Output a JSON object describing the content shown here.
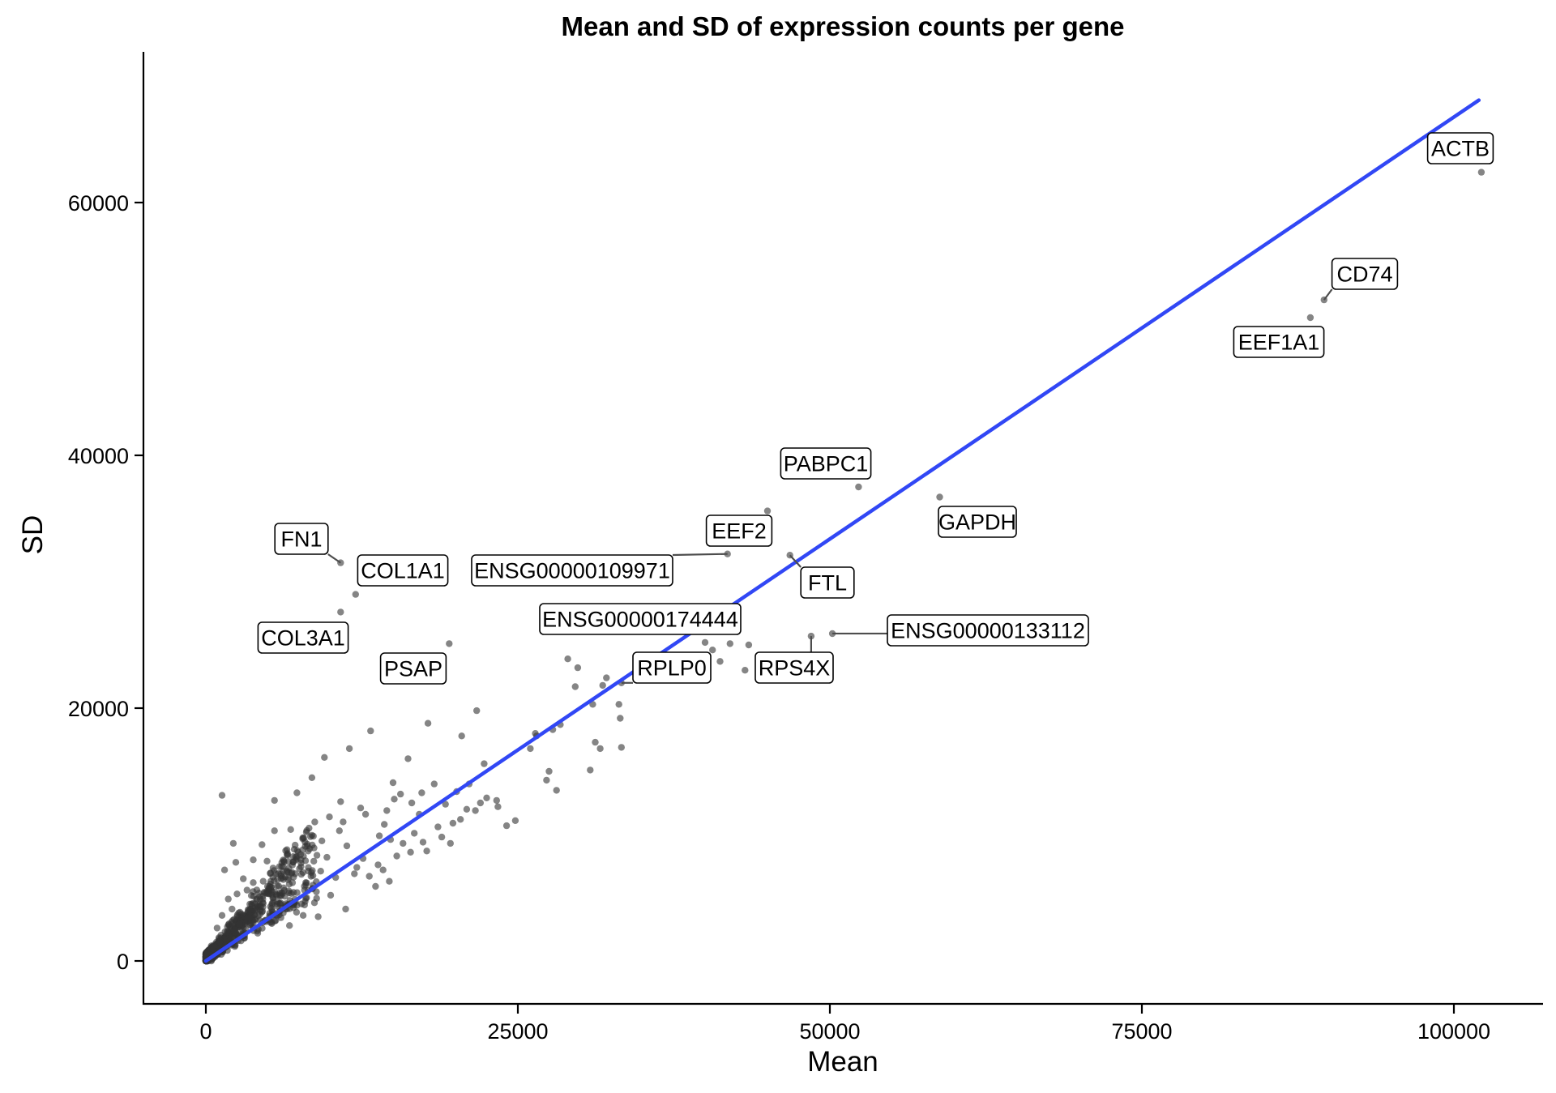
{
  "chart_data": {
    "type": "scatter",
    "title": "Mean and SD of expression counts per gene",
    "xlabel": "Mean",
    "ylabel": "SD",
    "xlim": [
      -5000,
      107500
    ],
    "ylim": [
      -3500,
      72000
    ],
    "x_ticks": [
      0,
      25000,
      50000,
      75000,
      100000
    ],
    "x_tick_labels": [
      "0",
      "25000",
      "50000",
      "75000",
      "100000"
    ],
    "y_ticks": [
      0,
      20000,
      40000,
      60000
    ],
    "y_tick_labels": [
      "0",
      "20000",
      "40000",
      "60000"
    ],
    "grid": false,
    "point_color": "#333333",
    "point_opacity": 0.6,
    "trend_line": {
      "type": "linear fit",
      "color": "#3147F5",
      "x": [
        0,
        102000
      ],
      "y": [
        0,
        68100
      ]
    },
    "labeled_points": [
      {
        "gene": "ACTB",
        "x": 102200,
        "y": 62400
      },
      {
        "gene": "CD74",
        "x": 89600,
        "y": 52300
      },
      {
        "gene": "EEF1A1",
        "x": 88500,
        "y": 50900
      },
      {
        "gene": "PABPC1",
        "x": 52300,
        "y": 37500
      },
      {
        "gene": "GAPDH",
        "x": 58800,
        "y": 36700
      },
      {
        "gene": "EEF2",
        "x": 45000,
        "y": 35600
      },
      {
        "gene": "FTL",
        "x": 46800,
        "y": 32100
      },
      {
        "gene": "ENSG00000109971",
        "x": 41800,
        "y": 32200
      },
      {
        "gene": "FN1",
        "x": 10800,
        "y": 31500
      },
      {
        "gene": "COL1A1",
        "x": 12000,
        "y": 29000
      },
      {
        "gene": "COL3A1",
        "x": 10800,
        "y": 27600
      },
      {
        "gene": "ENSG00000174444",
        "x": 40000,
        "y": 25200
      },
      {
        "gene": "ENSG00000133112",
        "x": 50200,
        "y": 25900
      },
      {
        "gene": "RPS4X",
        "x": 48500,
        "y": 25700
      },
      {
        "gene": "RPLP0",
        "x": 33300,
        "y": 22000
      },
      {
        "gene": "PSAP",
        "x": 19500,
        "y": 25100
      }
    ],
    "other_points": [
      [
        1300,
        13100
      ],
      [
        5500,
        12700
      ],
      [
        7300,
        13300
      ],
      [
        8500,
        14500
      ],
      [
        9500,
        16100
      ],
      [
        11500,
        16800
      ],
      [
        13200,
        18200
      ],
      [
        15000,
        14100
      ],
      [
        16200,
        16000
      ],
      [
        17300,
        13300
      ],
      [
        17800,
        18800
      ],
      [
        19200,
        12400
      ],
      [
        20100,
        13400
      ],
      [
        20500,
        17800
      ],
      [
        21700,
        19800
      ],
      [
        22300,
        15600
      ],
      [
        21100,
        14000
      ],
      [
        23300,
        12700
      ],
      [
        24100,
        10700
      ],
      [
        24800,
        11100
      ],
      [
        26000,
        16800
      ],
      [
        26500,
        17800
      ],
      [
        27500,
        15000
      ],
      [
        27300,
        14300
      ],
      [
        28100,
        13500
      ],
      [
        28400,
        18700
      ],
      [
        29000,
        23900
      ],
      [
        29800,
        23200
      ],
      [
        31000,
        20300
      ],
      [
        31200,
        17300
      ],
      [
        31600,
        16800
      ],
      [
        30800,
        15100
      ],
      [
        31800,
        21800
      ],
      [
        32100,
        22400
      ],
      [
        33200,
        19200
      ],
      [
        33300,
        16900
      ],
      [
        33100,
        20300
      ],
      [
        42000,
        25100
      ],
      [
        43200,
        23000
      ],
      [
        41200,
        23700
      ],
      [
        40600,
        24600
      ],
      [
        43500,
        25000
      ],
      [
        29600,
        21700
      ],
      [
        27800,
        18300
      ],
      [
        26400,
        18000
      ],
      [
        18300,
        14000
      ],
      [
        16500,
        12500
      ],
      [
        15600,
        13200
      ],
      [
        14500,
        11900
      ],
      [
        12800,
        11600
      ],
      [
        10700,
        10300
      ],
      [
        9300,
        9500
      ],
      [
        8200,
        8700
      ],
      [
        6800,
        10400
      ],
      [
        5500,
        10300
      ],
      [
        4500,
        9200
      ],
      [
        3800,
        8000
      ],
      [
        2400,
        7800
      ],
      [
        2200,
        9300
      ],
      [
        1500,
        7200
      ],
      [
        3000,
        6500
      ],
      [
        4600,
        6300
      ],
      [
        6000,
        6900
      ],
      [
        7500,
        7300
      ],
      [
        9700,
        8200
      ],
      [
        11300,
        9100
      ],
      [
        12600,
        8100
      ],
      [
        13800,
        7600
      ],
      [
        14800,
        9600
      ],
      [
        15800,
        9300
      ],
      [
        16700,
        10100
      ],
      [
        17700,
        8700
      ],
      [
        18900,
        9800
      ],
      [
        19600,
        9300
      ],
      [
        20400,
        11200
      ],
      [
        21600,
        11900
      ],
      [
        22500,
        12900
      ],
      [
        23400,
        12200
      ],
      [
        12100,
        7400
      ],
      [
        13600,
        5900
      ],
      [
        14700,
        6300
      ],
      [
        11200,
        4100
      ],
      [
        10000,
        5200
      ],
      [
        8700,
        4600
      ],
      [
        7300,
        4400
      ],
      [
        6200,
        3800
      ],
      [
        5400,
        5000
      ],
      [
        4400,
        4300
      ],
      [
        3500,
        3400
      ],
      [
        2700,
        2900
      ],
      [
        1700,
        2300
      ],
      [
        1100,
        1500
      ],
      [
        600,
        900
      ],
      [
        300,
        500
      ],
      [
        2100,
        4100
      ],
      [
        1300,
        3600
      ],
      [
        900,
        2600
      ],
      [
        3300,
        5600
      ],
      [
        4900,
        7900
      ],
      [
        6500,
        8800
      ],
      [
        8000,
        6200
      ],
      [
        9200,
        7100
      ],
      [
        10400,
        6600
      ],
      [
        11900,
        6900
      ],
      [
        13100,
        6700
      ],
      [
        14200,
        7200
      ],
      [
        15300,
        8300
      ],
      [
        16400,
        8600
      ],
      [
        17400,
        9400
      ],
      [
        18600,
        10600
      ],
      [
        19800,
        10900
      ],
      [
        20900,
        12000
      ],
      [
        22000,
        12500
      ],
      [
        5200,
        6300
      ],
      [
        6900,
        7000
      ],
      [
        7900,
        5600
      ],
      [
        3800,
        6200
      ],
      [
        2500,
        5300
      ],
      [
        1800,
        4900
      ],
      [
        4200,
        2500
      ],
      [
        5600,
        3200
      ],
      [
        6700,
        2800
      ],
      [
        7800,
        3600
      ],
      [
        9000,
        3500
      ],
      [
        3100,
        1800
      ],
      [
        2300,
        1300
      ],
      [
        4800,
        3100
      ],
      [
        10800,
        12600
      ],
      [
        12400,
        12100
      ],
      [
        14300,
        10800
      ],
      [
        9900,
        11400
      ],
      [
        13900,
        9900
      ],
      [
        11000,
        11000
      ],
      [
        15100,
        12800
      ],
      [
        17100,
        11600
      ]
    ]
  }
}
